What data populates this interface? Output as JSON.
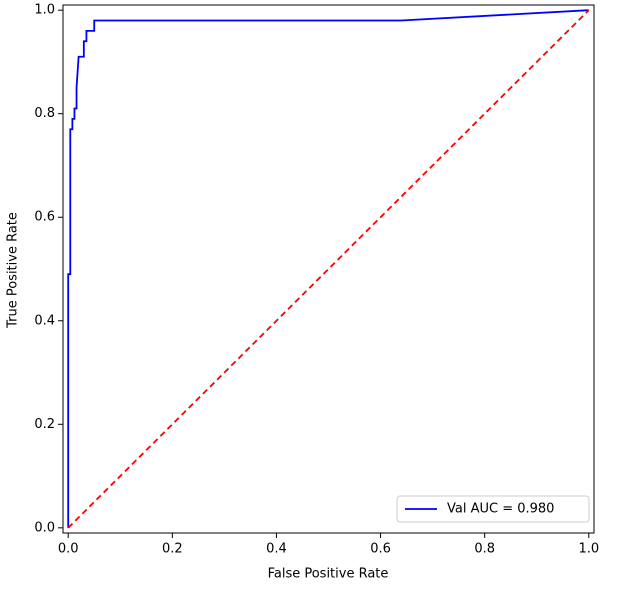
{
  "chart_data": {
    "type": "line",
    "xlabel": "False Positive Rate",
    "ylabel": "True Positive Rate",
    "series": [
      {
        "name": "Val AUC = 0.980",
        "color": "#0000ff",
        "style": "solid",
        "x": [
          0,
          0,
          0.004,
          0.004,
          0.008,
          0.008,
          0.012,
          0.012,
          0.016,
          0.016,
          0.018,
          0.02,
          0.03,
          0.03,
          0.035,
          0.035,
          0.05,
          0.05,
          0.64,
          1
        ],
        "values": [
          0,
          0.49,
          0.49,
          0.77,
          0.77,
          0.79,
          0.79,
          0.81,
          0.81,
          0.85,
          0.88,
          0.91,
          0.91,
          0.94,
          0.94,
          0.96,
          0.96,
          0.98,
          0.98,
          1
        ]
      },
      {
        "color": "#ff0000",
        "style": "dashed",
        "x": [
          0,
          1
        ],
        "values": [
          0,
          1
        ]
      }
    ],
    "xlim": [
      -0.01,
      1.01
    ],
    "ylim": [
      -0.01,
      1.01
    ],
    "xticks": [
      {
        "value": 0,
        "label": "0.0"
      },
      0.2,
      0.4,
      0.6,
      0.8,
      {
        "value": 1,
        "label": "1.0"
      }
    ],
    "yticks": [
      {
        "value": 0,
        "label": "0.0"
      },
      0.2,
      0.4,
      0.6,
      0.8,
      {
        "value": 1,
        "label": "1.0"
      }
    ],
    "grid": false,
    "legend": "lower right"
  }
}
